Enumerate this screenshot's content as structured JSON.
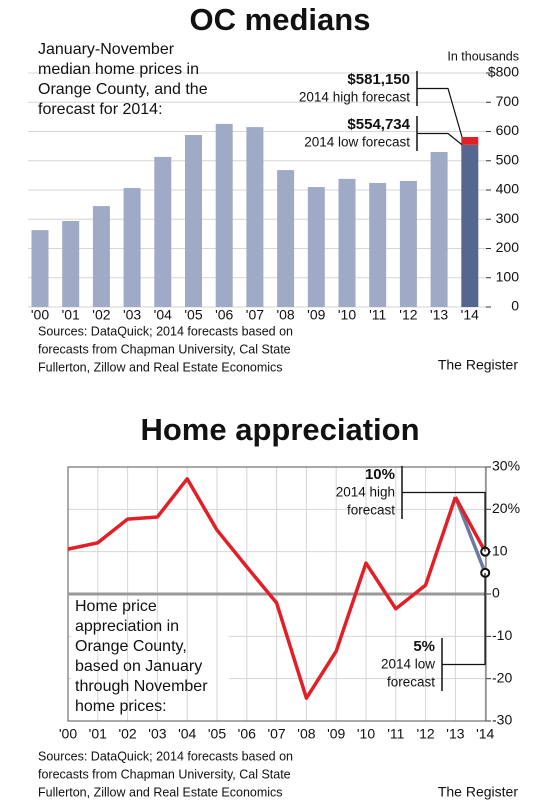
{
  "chart_data": [
    {
      "type": "bar",
      "title": "OC medians",
      "description": [
        "January-November",
        "median home prices in",
        "Orange County, and the",
        "forecast for 2014:"
      ],
      "y_label": "In thousands",
      "categories": [
        "'00",
        "'01",
        "'02",
        "'03",
        "'04",
        "'05",
        "'06",
        "'07",
        "'08",
        "'09",
        "'10",
        "'11",
        "'12",
        "'13",
        "'14"
      ],
      "values": [
        263,
        294,
        345,
        407,
        513,
        588,
        626,
        615,
        468,
        410,
        438,
        424,
        431,
        530,
        null
      ],
      "color": "#9eaac6",
      "forecast": {
        "low": 554.734,
        "low_label": "$554,734",
        "low_text": [
          "2014 low forecast"
        ],
        "low_color": "#56678f",
        "high": 581.15,
        "high_label": "$581,150",
        "high_text": [
          "2014 high forecast"
        ],
        "high_color": "#e21f26"
      },
      "ylim": [
        0,
        800
      ],
      "yticks": [
        0,
        100,
        200,
        300,
        400,
        500,
        600,
        700,
        {
          "value": 800,
          "label": "$800"
        }
      ],
      "grid": true,
      "source": [
        "Sources: DataQuick; 2014 forecasts based on",
        "forecasts from Chapman University, Cal State",
        "Fullerton, Zillow and Real Estate Economics"
      ],
      "credit": "The Register"
    },
    {
      "type": "line",
      "title": "Home appreciation",
      "description": [
        "Home price",
        "appreciation in",
        "Orange County,",
        "based on January",
        "through November",
        "home prices:"
      ],
      "categories": [
        "'00",
        "'01",
        "'02",
        "'03",
        "'04",
        "'05",
        "'06",
        "'07",
        "'08",
        "'09",
        "'10",
        "'11",
        "'12",
        "'13",
        "'14"
      ],
      "values": [
        10.6,
        12.1,
        17.7,
        18.2,
        27.2,
        15.1,
        6.4,
        -2.1,
        -24.6,
        -13.5,
        7.3,
        -3.5,
        2.1,
        22.9,
        null
      ],
      "color": "#e21f26",
      "forecast": {
        "high": 10,
        "high_label": "10%",
        "high_text": [
          "2014 high",
          "forecast"
        ],
        "high_color": "#e21f26",
        "low": 5,
        "low_label": "5%",
        "low_text": [
          "2014 low",
          "forecast"
        ],
        "low_color": "#6b7ba3"
      },
      "ylim": [
        -30,
        30
      ],
      "yticks": [
        -30,
        -20,
        -10,
        0,
        10,
        {
          "value": 20,
          "label": "20%"
        },
        {
          "value": 30,
          "label": "30%"
        }
      ],
      "grid": true,
      "source": [
        "Sources: DataQuick; 2014 forecasts based on",
        "forecasts from Chapman University, Cal State",
        "Fullerton, Zillow and Real Estate Economics"
      ],
      "credit": "The Register"
    }
  ]
}
